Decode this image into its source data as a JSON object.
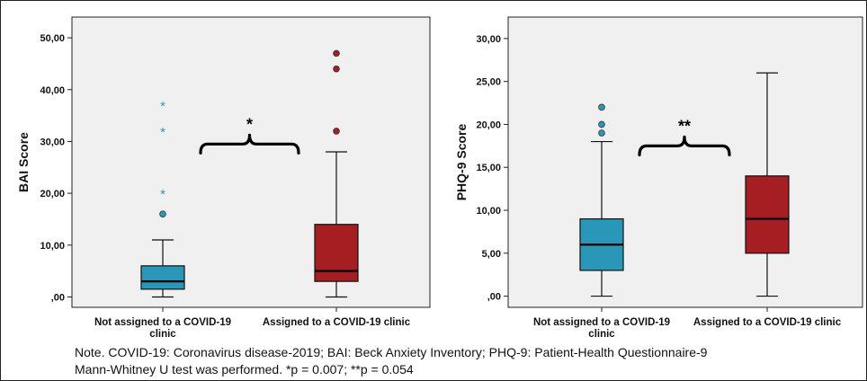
{
  "colors": {
    "not_assigned": "#2b97b8",
    "assigned": "#a51e22",
    "plot_bg": "#f0f0f0",
    "axis": "#222222"
  },
  "chart_data": [
    {
      "type": "boxplot",
      "ylabel": "BAI Score",
      "ylim": [
        -2,
        54
      ],
      "yticks": [
        0,
        10,
        20,
        30,
        40,
        50
      ],
      "yticklabels": [
        ",00",
        "10,00",
        "20,00",
        "30,00",
        "40,00",
        "50,00"
      ],
      "categories": [
        "Not assigned to a COVID-19 clinic",
        "Assigned to a COVID-19 clinic"
      ],
      "category_label_lines": [
        [
          "Not assigned to a COVID-19",
          "clinic"
        ],
        [
          "Assigned to a COVID-19 clinic"
        ]
      ],
      "series": [
        {
          "category": "Not assigned to a COVID-19 clinic",
          "min": 0,
          "q1": 1.5,
          "median": 3,
          "q3": 6,
          "max": 11,
          "outliers": [
            16
          ],
          "extremes": [
            20,
            32,
            37
          ]
        },
        {
          "category": "Assigned to a COVID-19 clinic",
          "min": 0,
          "q1": 3,
          "median": 5,
          "q3": 14,
          "max": 28,
          "outliers": [
            32,
            44,
            47
          ],
          "extremes": []
        }
      ],
      "significance": "*",
      "bracket_level": 29.5,
      "grid": false
    },
    {
      "type": "boxplot",
      "ylabel": "PHQ-9 Score",
      "ylim": [
        -1.3,
        32.5
      ],
      "yticks": [
        0,
        5,
        10,
        15,
        20,
        25,
        30
      ],
      "yticklabels": [
        ",00",
        "5,00",
        "10,00",
        "15,00",
        "20,00",
        "25,00",
        "30,00"
      ],
      "categories": [
        "Not assigned to a COVID-19 clinic",
        "Assigned to a COVID-19 clinic"
      ],
      "category_label_lines": [
        [
          "Not assigned to a COVID-19",
          "clinic"
        ],
        [
          "Assigned to a COVID-19 clinic"
        ]
      ],
      "series": [
        {
          "category": "Not assigned to a COVID-19 clinic",
          "min": 0,
          "q1": 3,
          "median": 6,
          "q3": 9,
          "max": 18,
          "outliers": [
            19,
            20,
            22
          ],
          "extremes": []
        },
        {
          "category": "Assigned to a COVID-19 clinic",
          "min": 0,
          "q1": 5,
          "median": 9,
          "q3": 14,
          "max": 26,
          "outliers": [],
          "extremes": []
        }
      ],
      "significance": "**",
      "bracket_level": 17.5,
      "grid": false
    }
  ],
  "note": {
    "line1": "Note. COVID-19: Coronavirus disease-2019; BAI: Beck Anxiety Inventory; PHQ-9: Patient-Health Questionnaire-9",
    "line2": "Mann-Whitney U test was performed. *p = 0.007; **p = 0.054"
  }
}
